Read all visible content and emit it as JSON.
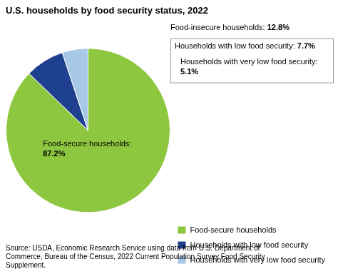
{
  "chart_data": {
    "type": "pie",
    "title": "U.S. households by food security status, 2022",
    "categories": [
      "Food-secure households",
      "Households with low food security",
      "Households with very low food security"
    ],
    "values": [
      87.2,
      7.7,
      5.1
    ],
    "colors": [
      "#8DC63F",
      "#1F3F8F",
      "#A8C8E8"
    ],
    "legend": "lower right",
    "annotations": [
      "Food-secure households: 87.2%",
      "Food-insecure households: 12.8%",
      "Households with low food security: 7.7%",
      "Households with very low food security: 5.1%"
    ],
    "source": "Source: USDA, Economic Research Service using data from U.S. Department of\nCommerce, Bureau of the Census, 2022 Current Population Survey Food Security\nSupplement."
  }
}
